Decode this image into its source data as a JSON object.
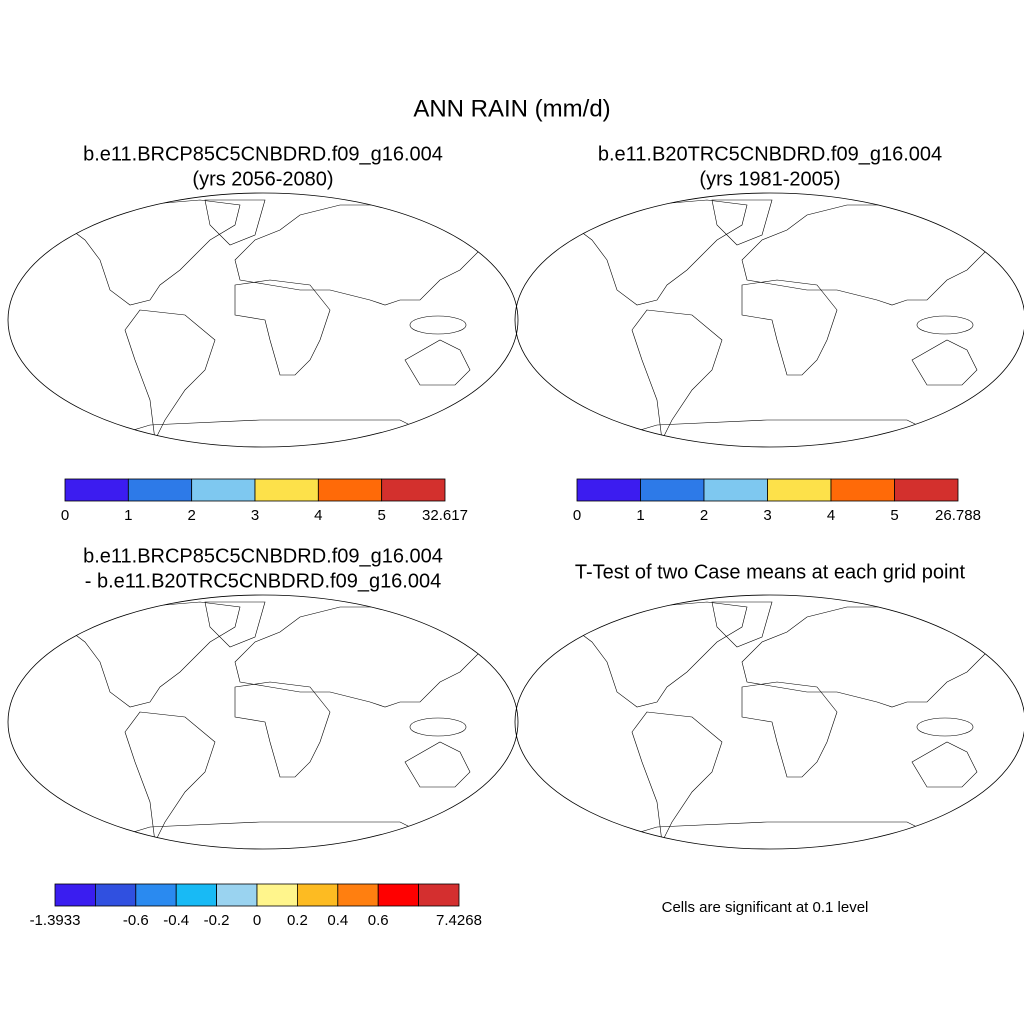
{
  "title": "ANN RAIN (mm/d)",
  "panels": [
    {
      "title": [
        "b.e11.BRCP85C5CNBDRD.f09_g16.004",
        "(yrs 2056-2080)"
      ],
      "colorbar": {
        "colors": [
          "#3c1cf0",
          "#2d7ae8",
          "#7ec8f0",
          "#fde14a",
          "#ff6a08",
          "#d3302d"
        ],
        "edges": [
          0,
          1,
          2,
          3,
          4,
          5,
          32.617
        ]
      }
    },
    {
      "title": [
        "b.e11.B20TRC5CNBDRD.f09_g16.004",
        "(yrs 1981-2005)"
      ],
      "colorbar": {
        "colors": [
          "#3c1cf0",
          "#2d7ae8",
          "#7ec8f0",
          "#fde14a",
          "#ff6a08",
          "#d3302d"
        ],
        "edges": [
          0,
          1,
          2,
          3,
          4,
          5,
          26.788
        ]
      }
    },
    {
      "title": [
        "b.e11.BRCP85C5CNBDRD.f09_g16.004",
        "- b.e11.B20TRC5CNBDRD.f09_g16.004"
      ],
      "colorbar": {
        "colors": [
          "#3a1df0",
          "#3050e0",
          "#2a8af0",
          "#18baf5",
          "#9ad3f0",
          "#fff58c",
          "#fdbb22",
          "#ff7f10",
          "#ff0000",
          "#d42f2f"
        ],
        "edges": [
          -1.3933,
          null,
          -0.6,
          -0.4,
          -0.2,
          0,
          0.2,
          0.4,
          0.6,
          null,
          7.4268
        ]
      }
    },
    {
      "title": [
        "T-Test of two Case means at each grid point"
      ],
      "note": "Cells are significant at 0.1 level"
    }
  ]
}
